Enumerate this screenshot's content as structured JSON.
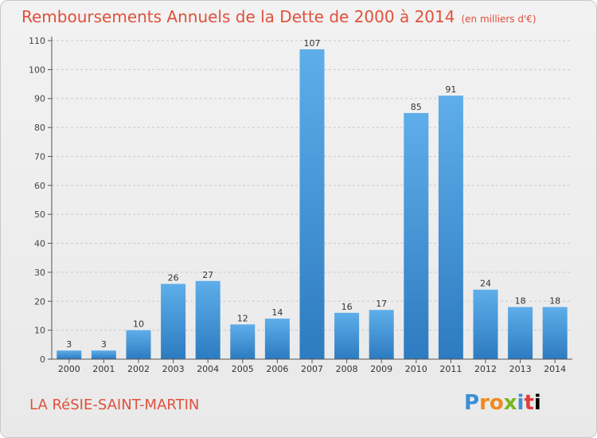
{
  "header": {
    "title": "Remboursements Annuels de la Dette de 2000 à 2014",
    "subtitle": "(en milliers d'€)"
  },
  "footer": {
    "town": "LA RéSIE-SAINT-MARTIN",
    "logo_letters": [
      "P",
      "r",
      "o",
      "x",
      "i",
      "t",
      "i"
    ]
  },
  "colors": {
    "bar_top": "#5eaeea",
    "bar_bottom": "#2d7bc0",
    "title": "#e0503c",
    "grid": "#c9c9c9"
  },
  "chart_data": {
    "type": "bar",
    "title": "Remboursements Annuels de la Dette de 2000 à 2014",
    "subtitle": "(en milliers d'€)",
    "categories": [
      "2000",
      "2001",
      "2002",
      "2003",
      "2004",
      "2005",
      "2006",
      "2007",
      "2008",
      "2009",
      "2010",
      "2011",
      "2012",
      "2013",
      "2014"
    ],
    "values": [
      3,
      3,
      10,
      26,
      27,
      12,
      14,
      107,
      16,
      17,
      85,
      91,
      24,
      18,
      18
    ],
    "ylim": [
      0,
      110
    ],
    "yticks": [
      0,
      10,
      20,
      30,
      40,
      50,
      60,
      70,
      80,
      90,
      100,
      110
    ],
    "grid": true,
    "data_labels": true
  }
}
